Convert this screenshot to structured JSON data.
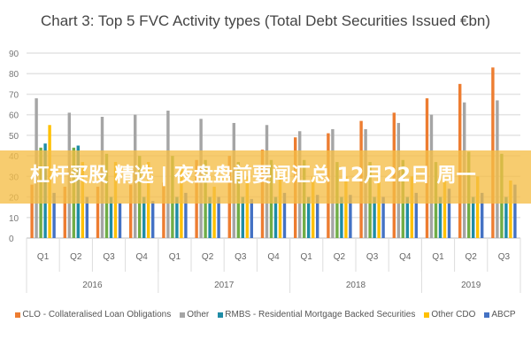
{
  "chart_data": {
    "type": "bar",
    "title": "Chart 3: Top 5 FVC Activity types (Total Debt Securities Issued €bn)",
    "xlabel": "",
    "ylabel": "",
    "ylim": [
      0,
      90
    ],
    "yticks": [
      "0",
      "10",
      "20",
      "30",
      "40",
      "50",
      "60",
      "70",
      "80",
      "90"
    ],
    "grid": true,
    "legend_position": "bottom",
    "categories": [
      "Q1",
      "Q2",
      "Q3",
      "Q4",
      "Q1",
      "Q2",
      "Q3",
      "Q4",
      "Q1",
      "Q2",
      "Q3",
      "Q4",
      "Q1",
      "Q2",
      "Q3"
    ],
    "years": [
      {
        "label": "2016",
        "count": 4
      },
      {
        "label": "2017",
        "count": 4
      },
      {
        "label": "2018",
        "count": 4
      },
      {
        "label": "2019",
        "count": 3
      }
    ],
    "series": [
      {
        "name": "CLO - Collateralised Loan Obligations",
        "color": "#ed7d31",
        "values": [
          26,
          25,
          25,
          26,
          27,
          38,
          40,
          43,
          49,
          51,
          57,
          61,
          68,
          75,
          83
        ]
      },
      {
        "name": "Other",
        "color": "#a5a5a5",
        "values": [
          68,
          61,
          59,
          60,
          62,
          58,
          56,
          55,
          52,
          53,
          53,
          56,
          60,
          66,
          67
        ]
      },
      {
        "name": "",
        "color": "#70ad47",
        "values": [
          44,
          44,
          41,
          40,
          40,
          38,
          37,
          38,
          38,
          37,
          37,
          38,
          37,
          42,
          41
        ]
      },
      {
        "name": "RMBS - Residential Mortgage Backed Securities",
        "color": "#1f8ca6",
        "values": [
          46,
          45,
          20,
          20,
          20,
          20,
          20,
          20,
          20,
          20,
          20,
          20,
          20,
          20,
          20
        ]
      },
      {
        "name": "Other CDO",
        "color": "#ffc000",
        "values": [
          55,
          37,
          37,
          37,
          35,
          25,
          30,
          32,
          30,
          30,
          31,
          30,
          28,
          30,
          28
        ]
      },
      {
        "name": "ABCP",
        "color": "#4472c4",
        "values": [
          22,
          20,
          17,
          18,
          22,
          20,
          19,
          22,
          21,
          21,
          20,
          22,
          24,
          22,
          26
        ]
      }
    ]
  },
  "overlay": {
    "banner_text": "杠杆买股 精选 | 夜盘盘前要闻汇总 12月22日 周一"
  }
}
